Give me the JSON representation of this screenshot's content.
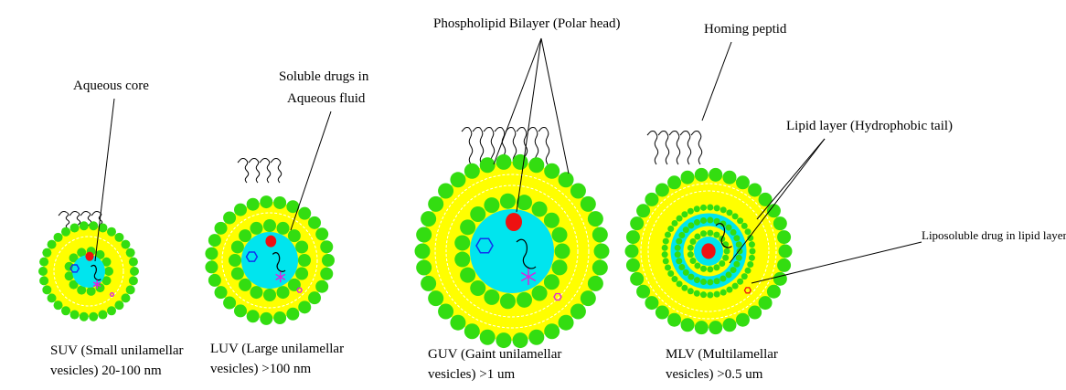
{
  "labels": {
    "aqueous_core": "Aqueous core",
    "soluble_drugs": [
      "Soluble drugs in",
      "Aqueous fluid"
    ],
    "phospholipid": "Phospholipid Bilayer (Polar head)",
    "homing": "Homing peptid",
    "lipid_layer": "Lipid layer (Hydrophobic tail)",
    "liposoluble": "Liposoluble drug in lipid layer"
  },
  "vesicles": [
    {
      "caption": [
        "SUV (Small unilamellar",
        "vesicles) 20-100 nm"
      ]
    },
    {
      "caption": [
        "LUV (Large unilamellar",
        "vesicles) >100 nm"
      ]
    },
    {
      "caption": [
        "GUV (Gaint unilamellar",
        "vesicles) >1 um"
      ]
    },
    {
      "caption": [
        "MLV (Multilamellar",
        "vesicles) >0.5 um"
      ]
    }
  ]
}
